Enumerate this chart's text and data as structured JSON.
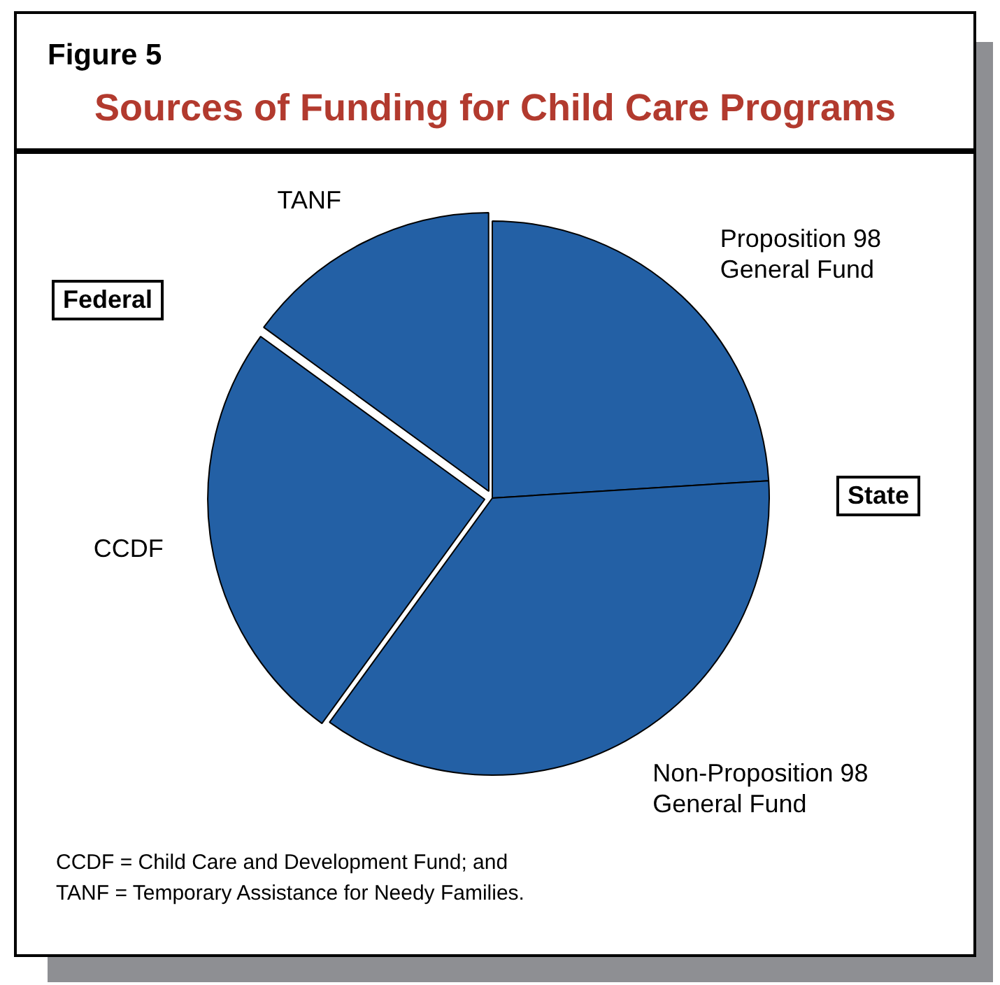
{
  "chart_data": {
    "type": "pie",
    "subtitle": "Figure 5",
    "title": "Sources of Funding for Child Care Programs",
    "categories": [
      "Proposition 98 General Fund",
      "Non-Proposition 98 General Fund",
      "CCDF",
      "TANF"
    ],
    "values": [
      24,
      36,
      25,
      15
    ],
    "colors": [
      "#2360a5",
      "#2360a5",
      "#2360a5",
      "#2360a5"
    ],
    "annotations": [
      "Federal",
      "State",
      "CCDF = Child Care and Development Fund; and",
      "TANF = Temporary Assistance for Needy Families."
    ],
    "legend": false
  }
}
